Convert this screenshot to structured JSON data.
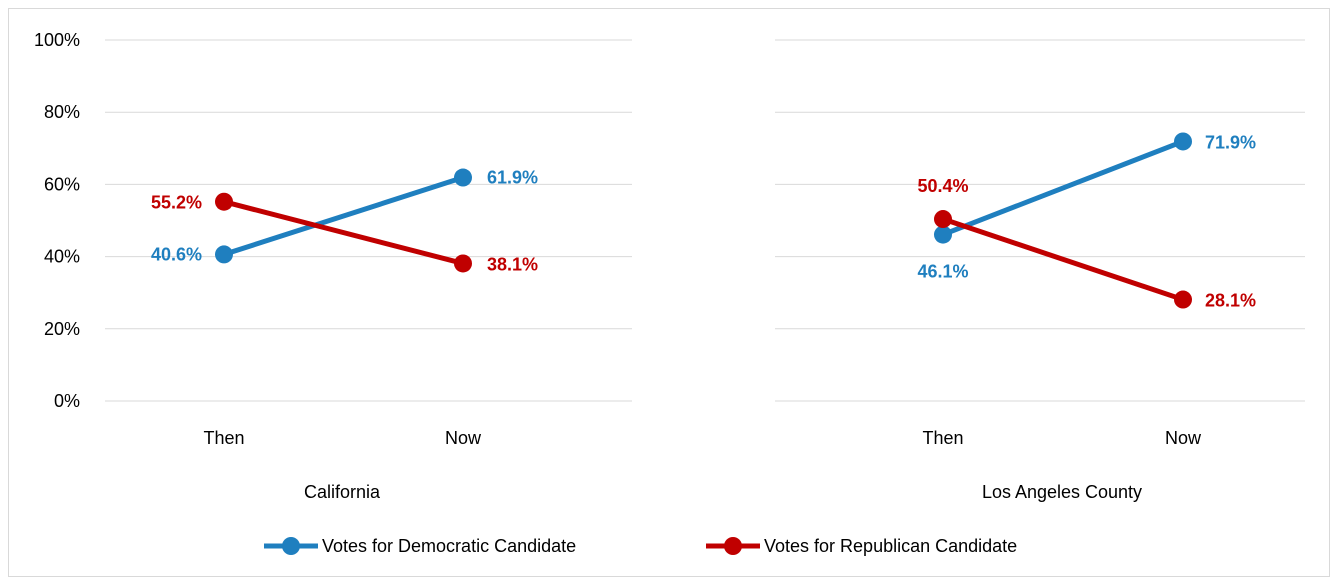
{
  "chart_data": {
    "type": "line",
    "ylim": [
      0,
      100
    ],
    "y_ticks": [
      "0%",
      "20%",
      "40%",
      "60%",
      "80%",
      "100%"
    ],
    "y_tick_values": [
      0,
      20,
      40,
      60,
      80,
      100
    ],
    "grid": true,
    "legend_position": "bottom",
    "colors": {
      "democratic": "#1f7fbf",
      "republican": "#c00000",
      "grid": "#d9d9d9"
    },
    "panels": [
      {
        "group_label": "California",
        "categories": [
          "Then",
          "Now"
        ],
        "series": [
          {
            "name": "Votes for Democratic Candidate",
            "values": [
              40.6,
              61.9
            ],
            "labels": [
              "40.6%",
              "61.9%"
            ]
          },
          {
            "name": "Votes for Republican Candidate",
            "values": [
              55.2,
              38.1
            ],
            "labels": [
              "55.2%",
              "38.1%"
            ]
          }
        ]
      },
      {
        "group_label": "Los Angeles County",
        "categories": [
          "Then",
          "Now"
        ],
        "series": [
          {
            "name": "Votes for Democratic Candidate",
            "values": [
              46.1,
              71.9
            ],
            "labels": [
              "46.1%",
              "71.9%"
            ]
          },
          {
            "name": "Votes for Republican Candidate",
            "values": [
              50.4,
              28.1
            ],
            "labels": [
              "50.4%",
              "28.1%"
            ]
          }
        ]
      }
    ],
    "legend": [
      "Votes for Democratic Candidate",
      "Votes for Republican Candidate"
    ]
  }
}
